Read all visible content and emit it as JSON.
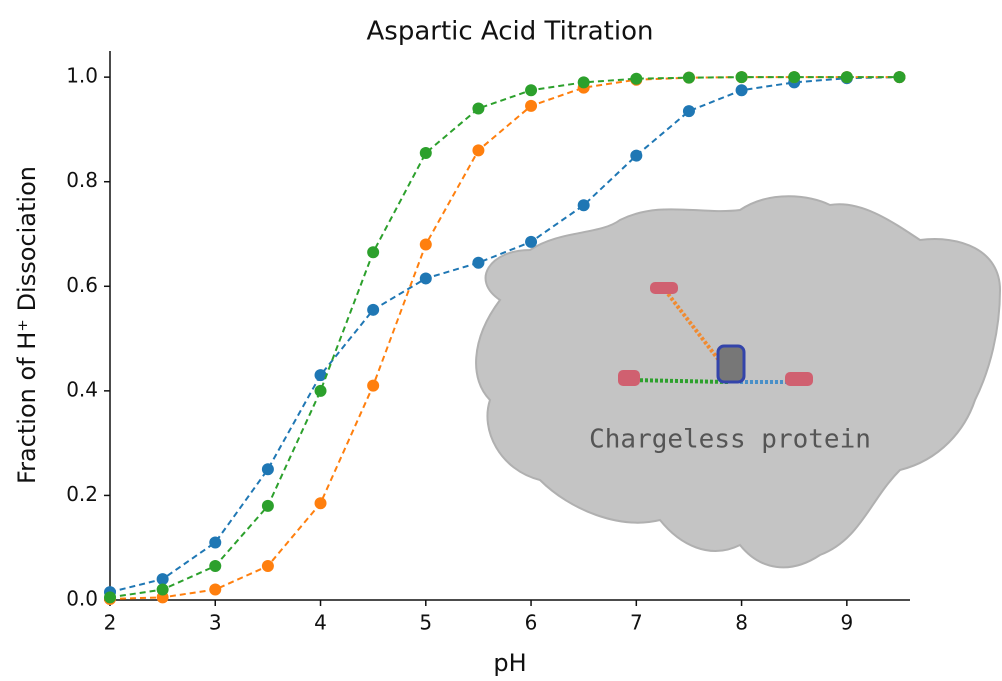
{
  "chart_data": {
    "type": "line",
    "title": "Aspartic Acid Titration",
    "x_label": "pH",
    "y_label": "Fraction of H⁺ Dissociation",
    "annotation": "Chargeless protein",
    "x": [
      2,
      2.5,
      3,
      3.5,
      4,
      4.5,
      5,
      5.5,
      6,
      6.5,
      7,
      7.5,
      8,
      8.5,
      9,
      9.5
    ],
    "series": [
      {
        "color": "#1f77b4",
        "values": [
          0.015,
          0.04,
          0.11,
          0.25,
          0.43,
          0.555,
          0.615,
          0.645,
          0.685,
          0.755,
          0.85,
          0.935,
          0.975,
          0.99,
          0.998,
          1.0
        ]
      },
      {
        "color": "#ff7f0e",
        "values": [
          0.002,
          0.005,
          0.02,
          0.065,
          0.185,
          0.41,
          0.68,
          0.86,
          0.945,
          0.98,
          0.995,
          0.999,
          1.0,
          1.0,
          1.0,
          1.0
        ]
      },
      {
        "color": "#2ca02c",
        "values": [
          0.005,
          0.02,
          0.065,
          0.18,
          0.4,
          0.665,
          0.855,
          0.94,
          0.975,
          0.99,
          0.997,
          0.999,
          1.0,
          1.0,
          1.0,
          1.0
        ]
      }
    ],
    "xlim": [
      2,
      9.6
    ],
    "ylim": [
      0,
      1.05
    ],
    "xticks": [
      2,
      3,
      4,
      5,
      6,
      7,
      8,
      9
    ],
    "yticks": [
      {
        "value": 0,
        "label": "0.0"
      },
      0.2,
      0.4,
      0.6,
      0.8,
      {
        "value": 1,
        "label": "1.0"
      }
    ],
    "grid": false
  }
}
